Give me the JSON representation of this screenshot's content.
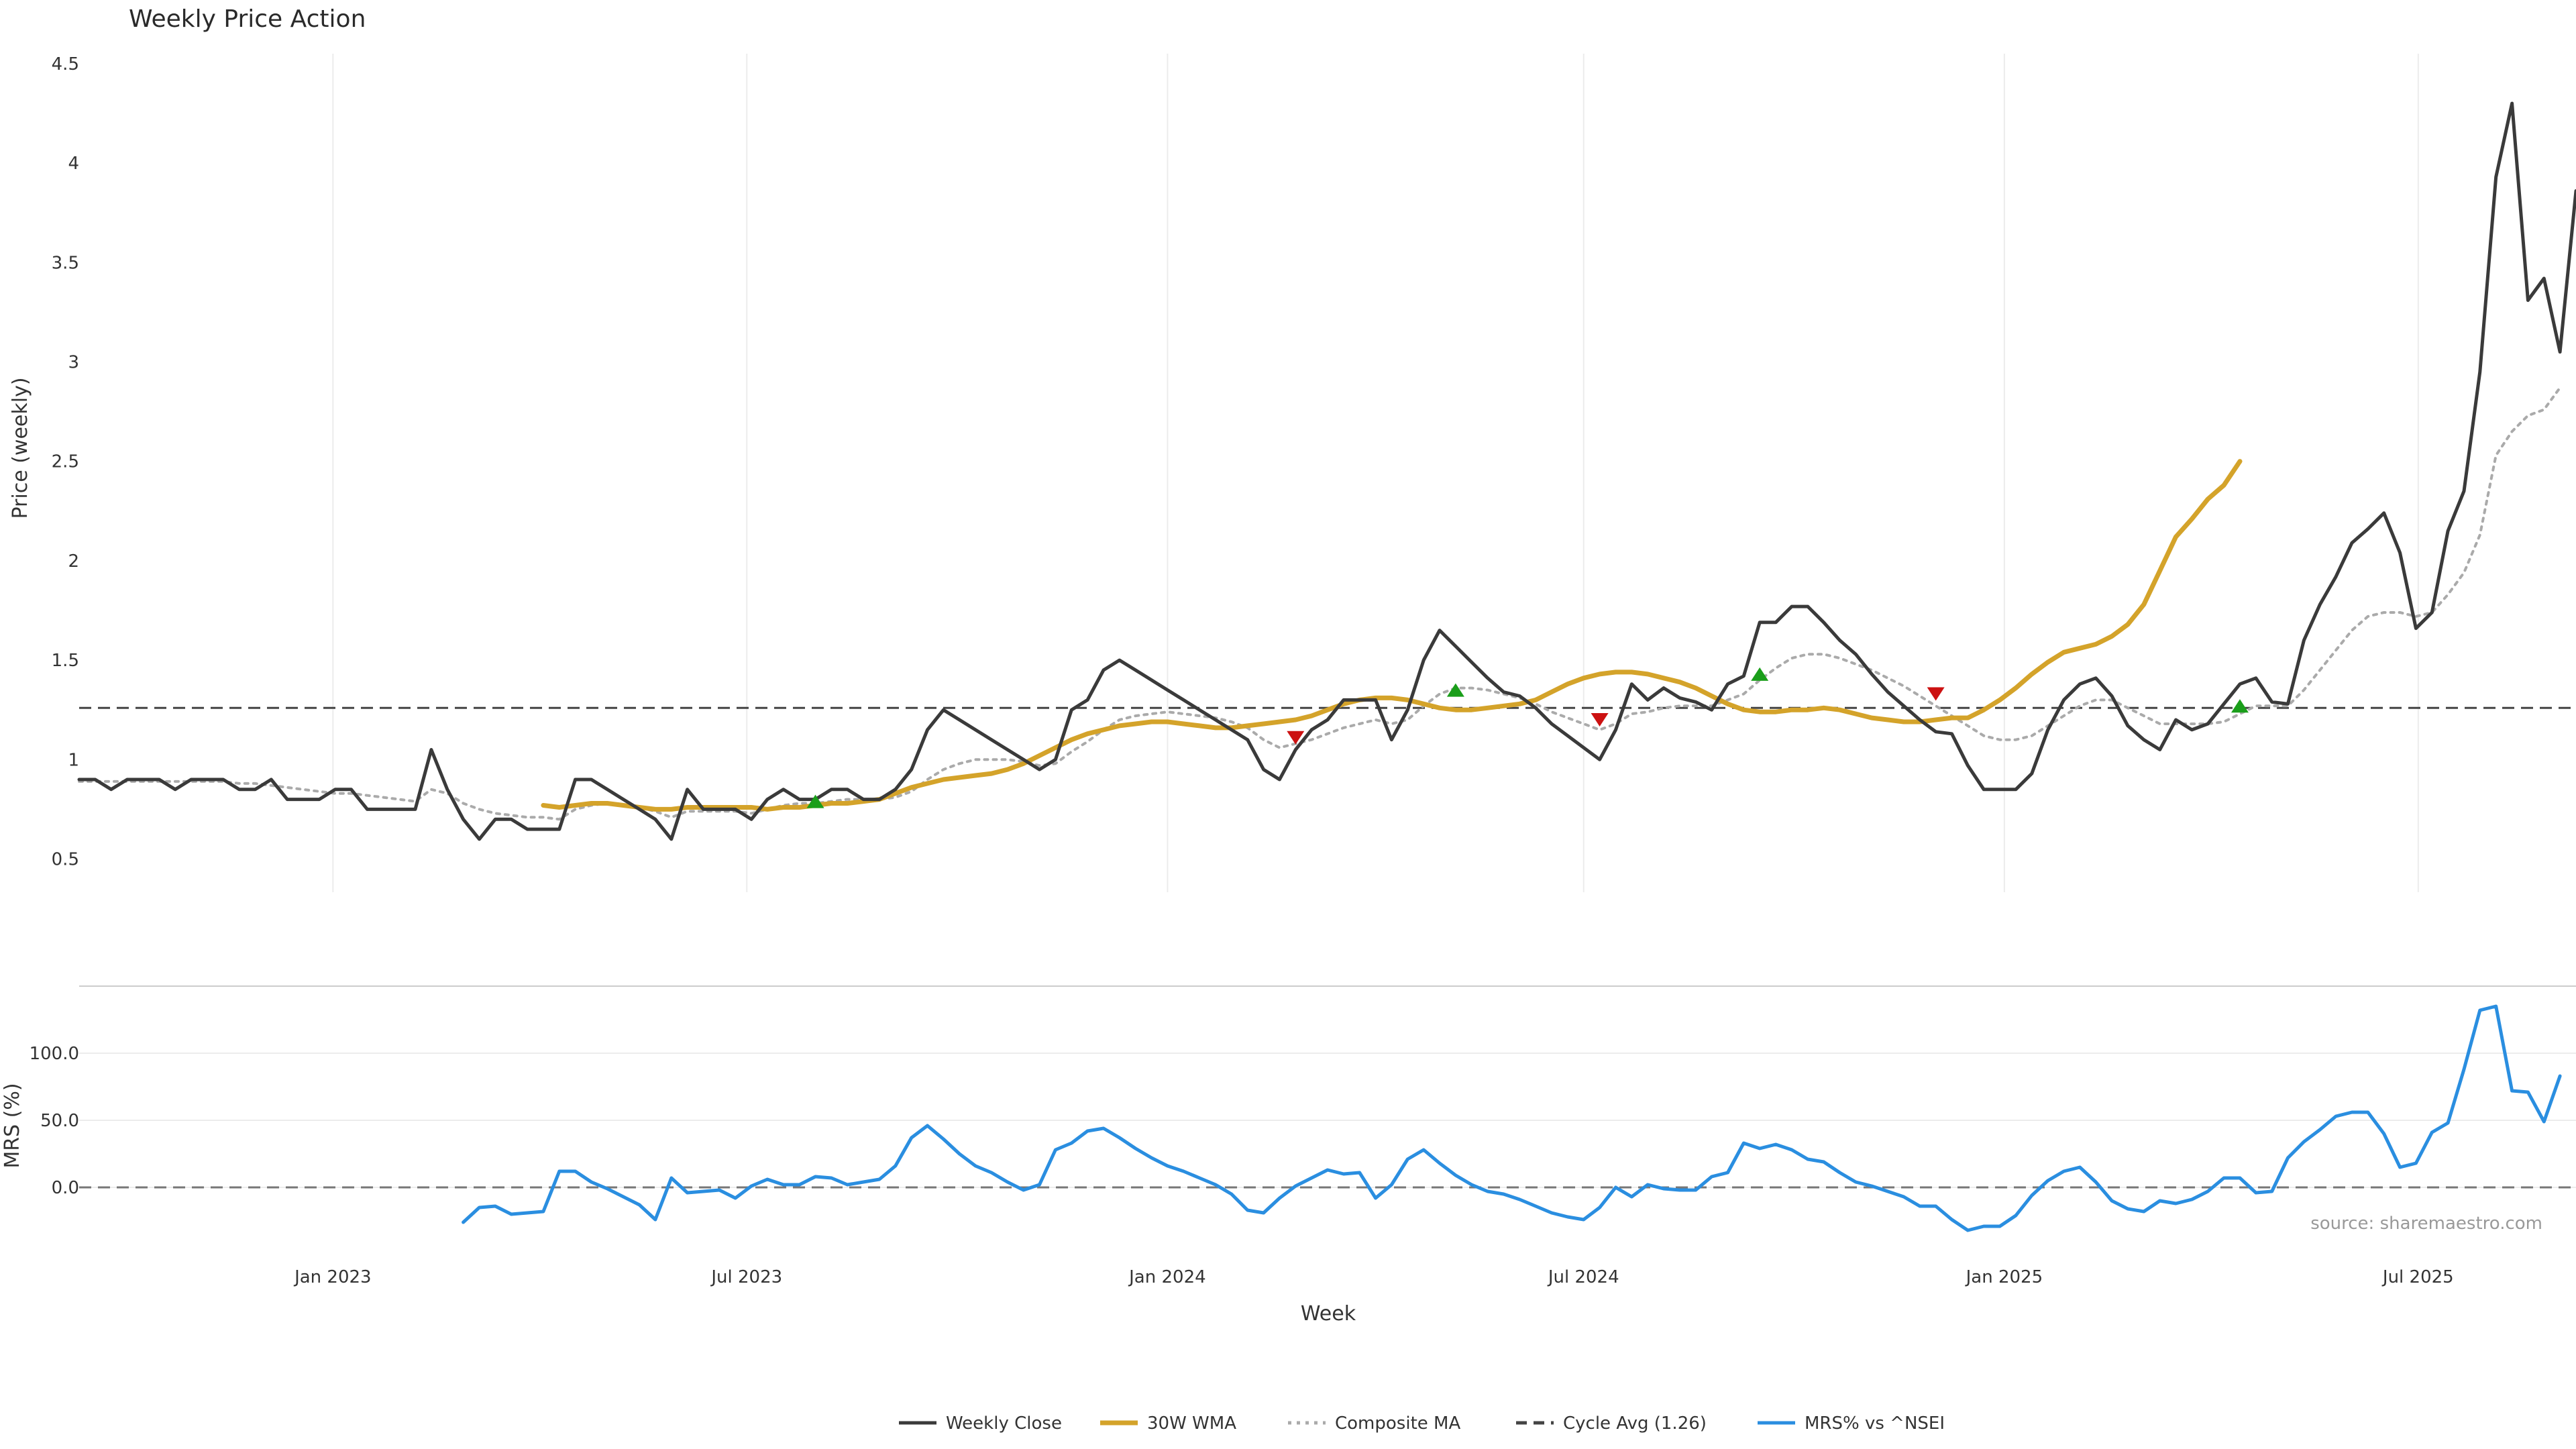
{
  "chart_data": [
    {
      "type": "line",
      "title": "Weekly Price Action",
      "ylabel": "Price (weekly)",
      "xlabel": "Week",
      "ylim": [
        0.35,
        4.55
      ],
      "yticks": [
        "0.5",
        "1",
        "1.5",
        "2",
        "2.5",
        "3",
        "3.5",
        "4",
        "4.5"
      ],
      "xticks": [
        "Jan 2023",
        "Jul 2023",
        "Jan 2024",
        "Jul 2024",
        "Jan 2025",
        "Jul 2025"
      ],
      "x_start": "2022-09-12",
      "x_step_days": 7,
      "grid": "x",
      "reference_line": {
        "name": "Cycle Avg (1.26)",
        "value": 1.26
      },
      "series": [
        {
          "name": "Weekly Close",
          "color": "#3a3a3a",
          "values": [
            0.9,
            0.9,
            0.85,
            0.9,
            0.9,
            0.9,
            0.85,
            0.9,
            0.9,
            0.9,
            0.85,
            0.85,
            0.9,
            0.8,
            0.8,
            0.8,
            0.85,
            0.85,
            0.75,
            0.75,
            0.75,
            0.75,
            1.05,
            0.85,
            0.7,
            0.6,
            0.7,
            0.7,
            0.65,
            0.65,
            0.65,
            0.9,
            0.9,
            0.85,
            0.8,
            0.75,
            0.7,
            0.6,
            0.85,
            0.75,
            0.75,
            0.75,
            0.7,
            0.8,
            0.85,
            0.8,
            0.8,
            0.85,
            0.85,
            0.8,
            0.8,
            0.85,
            0.95,
            1.15,
            1.25,
            1.2,
            1.15,
            1.1,
            1.05,
            1.0,
            0.95,
            1.0,
            1.25,
            1.3,
            1.45,
            1.5,
            1.45,
            1.4,
            1.35,
            1.3,
            1.25,
            1.2,
            1.15,
            1.1,
            0.95,
            0.9,
            1.05,
            1.15,
            1.2,
            1.3,
            1.3,
            1.3,
            1.1,
            1.25,
            1.5,
            1.65,
            1.57,
            1.49,
            1.41,
            1.34,
            1.32,
            1.26,
            1.18,
            1.12,
            1.06,
            1.0,
            1.15,
            1.38,
            1.3,
            1.36,
            1.31,
            1.29,
            1.25,
            1.38,
            1.42,
            1.69,
            1.69,
            1.77,
            1.77,
            1.69,
            1.6,
            1.53,
            1.43,
            1.34,
            1.27,
            1.2,
            1.14,
            1.13,
            0.97,
            0.85,
            0.85,
            0.85,
            0.93,
            1.15,
            1.3,
            1.38,
            1.41,
            1.32,
            1.17,
            1.1,
            1.05,
            1.2,
            1.15,
            1.18,
            1.28,
            1.38,
            1.41,
            1.29,
            1.28,
            1.6,
            1.78,
            1.92,
            2.09,
            2.16,
            2.24,
            2.04,
            1.66,
            1.74,
            2.15,
            2.35,
            2.95,
            3.93,
            4.3,
            3.31,
            3.42,
            3.05,
            3.86
          ]
        },
        {
          "name": "30W WMA",
          "color": "#d4a32a",
          "start_index": 29,
          "values": [
            0.77,
            0.76,
            0.77,
            0.78,
            0.78,
            0.77,
            0.76,
            0.75,
            0.75,
            0.76,
            0.76,
            0.76,
            0.76,
            0.76,
            0.75,
            0.76,
            0.76,
            0.77,
            0.78,
            0.78,
            0.79,
            0.8,
            0.83,
            0.86,
            0.88,
            0.9,
            0.91,
            0.92,
            0.93,
            0.95,
            0.98,
            1.02,
            1.06,
            1.1,
            1.13,
            1.15,
            1.17,
            1.18,
            1.19,
            1.19,
            1.18,
            1.17,
            1.16,
            1.16,
            1.17,
            1.18,
            1.19,
            1.2,
            1.22,
            1.25,
            1.28,
            1.3,
            1.31,
            1.31,
            1.3,
            1.28,
            1.26,
            1.25,
            1.25,
            1.26,
            1.27,
            1.28,
            1.3,
            1.34,
            1.38,
            1.41,
            1.43,
            1.44,
            1.44,
            1.43,
            1.41,
            1.39,
            1.36,
            1.32,
            1.28,
            1.25,
            1.24,
            1.24,
            1.25,
            1.25,
            1.26,
            1.25,
            1.23,
            1.21,
            1.2,
            1.19,
            1.19,
            1.2,
            1.21,
            1.21,
            1.25,
            1.3,
            1.36,
            1.43,
            1.49,
            1.54,
            1.56,
            1.58,
            1.62,
            1.68,
            1.78,
            1.95,
            2.12,
            2.21,
            2.31,
            2.38,
            2.5
          ]
        },
        {
          "name": "Composite MA",
          "color": "#aaaaaa",
          "values": [
            0.89,
            0.89,
            0.89,
            0.89,
            0.89,
            0.89,
            0.89,
            0.89,
            0.89,
            0.89,
            0.88,
            0.88,
            0.87,
            0.86,
            0.85,
            0.84,
            0.83,
            0.83,
            0.82,
            0.81,
            0.8,
            0.79,
            0.85,
            0.83,
            0.78,
            0.75,
            0.73,
            0.72,
            0.71,
            0.71,
            0.7,
            0.75,
            0.77,
            0.78,
            0.77,
            0.76,
            0.74,
            0.71,
            0.74,
            0.74,
            0.74,
            0.74,
            0.73,
            0.75,
            0.77,
            0.78,
            0.78,
            0.79,
            0.8,
            0.8,
            0.8,
            0.81,
            0.84,
            0.9,
            0.95,
            0.98,
            1.0,
            1.0,
            1.0,
            0.99,
            0.97,
            0.98,
            1.04,
            1.09,
            1.15,
            1.2,
            1.22,
            1.23,
            1.24,
            1.23,
            1.22,
            1.21,
            1.19,
            1.16,
            1.1,
            1.06,
            1.08,
            1.1,
            1.13,
            1.16,
            1.18,
            1.2,
            1.18,
            1.2,
            1.27,
            1.33,
            1.36,
            1.36,
            1.35,
            1.33,
            1.31,
            1.28,
            1.24,
            1.21,
            1.18,
            1.15,
            1.18,
            1.23,
            1.24,
            1.26,
            1.27,
            1.27,
            1.27,
            1.3,
            1.33,
            1.4,
            1.46,
            1.51,
            1.53,
            1.53,
            1.51,
            1.48,
            1.45,
            1.41,
            1.37,
            1.32,
            1.27,
            1.22,
            1.17,
            1.12,
            1.1,
            1.1,
            1.12,
            1.17,
            1.22,
            1.27,
            1.3,
            1.3,
            1.26,
            1.22,
            1.18,
            1.18,
            1.18,
            1.18,
            1.19,
            1.23,
            1.27,
            1.27,
            1.27,
            1.35,
            1.45,
            1.55,
            1.65,
            1.72,
            1.74,
            1.74,
            1.72,
            1.74,
            1.83,
            1.94,
            2.13,
            2.53,
            2.65,
            2.73,
            2.76,
            2.87
          ]
        }
      ],
      "signals": [
        {
          "kind": "buy",
          "color": "#1a9e1a",
          "index": 46,
          "value": 0.79
        },
        {
          "kind": "sell",
          "color": "#cc1111",
          "index": 76,
          "value": 1.11
        },
        {
          "kind": "buy",
          "color": "#1a9e1a",
          "index": 86,
          "value": 1.35
        },
        {
          "kind": "sell",
          "color": "#cc1111",
          "index": 95,
          "value": 1.2
        },
        {
          "kind": "buy",
          "color": "#1a9e1a",
          "index": 105,
          "value": 1.43
        },
        {
          "kind": "sell",
          "color": "#cc1111",
          "index": 116,
          "value": 1.33
        },
        {
          "kind": "buy",
          "color": "#1a9e1a",
          "index": 135,
          "value": 1.27
        }
      ]
    },
    {
      "type": "line",
      "ylabel": "MRS (%)",
      "xlabel": "Week",
      "ylim": [
        -50,
        145
      ],
      "yticks": [
        "0.0",
        "50.0",
        "100.0"
      ],
      "grid": "y",
      "reference_line": {
        "value": 0
      },
      "series": [
        {
          "name": "MRS% vs ^NSEI",
          "color": "#2a8ee0",
          "start_index": 24,
          "values": [
            -26,
            -15,
            -14,
            -20,
            -19,
            -18,
            12,
            12,
            4,
            -1,
            -7,
            -13,
            -24,
            7,
            -4,
            -3,
            -2,
            -8,
            1,
            6,
            2,
            2,
            8,
            7,
            2,
            4,
            6,
            16,
            37,
            46,
            36,
            25,
            16,
            11,
            4,
            -2,
            2,
            28,
            33,
            42,
            44,
            37,
            29,
            22,
            16,
            12,
            7,
            2,
            -5,
            -17,
            -19,
            -8,
            1,
            7,
            13,
            10,
            11,
            -8,
            2,
            21,
            28,
            18,
            9,
            2,
            -3,
            -5,
            -9,
            -14,
            -19,
            -22,
            -24,
            -15,
            0,
            -7,
            2,
            -1,
            -2,
            -2,
            8,
            11,
            33,
            29,
            32,
            28,
            21,
            19,
            11,
            4,
            1,
            -3,
            -7,
            -14,
            -14,
            -24,
            -32,
            -29,
            -29,
            -21,
            -6,
            5,
            12,
            15,
            4,
            -10,
            -16,
            -18,
            -10,
            -12,
            -9,
            -3,
            7,
            7,
            -4,
            -3,
            22,
            34,
            43,
            53,
            56,
            56,
            40,
            15,
            18,
            41,
            48,
            88,
            132,
            135,
            72,
            71,
            49,
            83
          ]
        }
      ]
    }
  ],
  "legend": [
    {
      "label": "Weekly Close",
      "color": "#3a3a3a",
      "style": "solid"
    },
    {
      "label": "30W WMA",
      "color": "#d4a32a",
      "style": "thick"
    },
    {
      "label": "Composite MA",
      "color": "#aaaaaa",
      "style": "dotted"
    },
    {
      "label": "Cycle Avg (1.26)",
      "color": "#444444",
      "style": "dashed"
    },
    {
      "label": "MRS% vs ^NSEI",
      "color": "#2a8ee0",
      "style": "solid"
    }
  ],
  "source_note": "source: sharemaestro.com"
}
